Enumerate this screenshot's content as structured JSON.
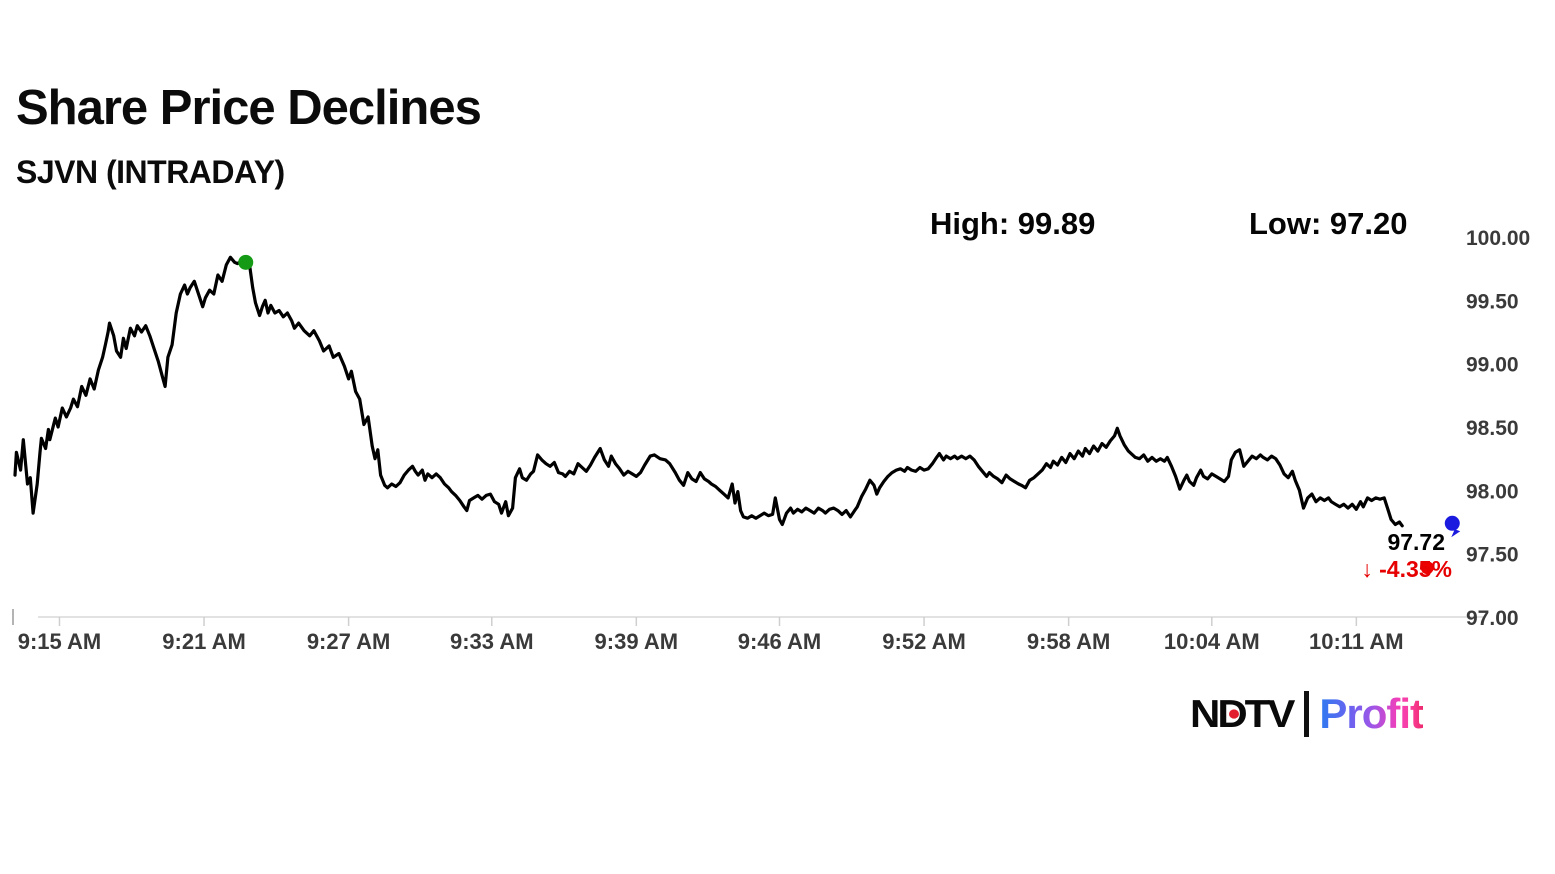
{
  "header": {
    "title": "Share Price Declines",
    "subtitle": "SJVN (INTRADAY)",
    "high_label": "High: 99.89",
    "low_label": "Low: 97.20"
  },
  "logo": {
    "ndtv": "NDTV",
    "profit": "Profit",
    "dot_color": "#e11d2e"
  },
  "chart_data": {
    "type": "line",
    "title": "Share Price Declines",
    "subtitle": "SJVN (INTRADAY)",
    "symbol": "SJVN",
    "high": 99.89,
    "low": 97.2,
    "last": 97.72,
    "change_pct": -4.35,
    "ylim": [
      97.0,
      100.0
    ],
    "grid": false,
    "y_ticks": [
      {
        "label": "100.00",
        "value": 100.0
      },
      {
        "label": "99.50",
        "value": 99.5
      },
      {
        "label": "99.00",
        "value": 99.0
      },
      {
        "label": "98.50",
        "value": 98.5
      },
      {
        "label": "98.00",
        "value": 98.0
      },
      {
        "label": "97.50",
        "value": 97.5
      },
      {
        "label": "97.00",
        "value": 97.0
      }
    ],
    "x_ticks": [
      {
        "label": "9:15 AM",
        "f": 0.032
      },
      {
        "label": "9:21 AM",
        "f": 0.136
      },
      {
        "label": "9:27 AM",
        "f": 0.24
      },
      {
        "label": "9:33 AM",
        "f": 0.343
      },
      {
        "label": "9:39 AM",
        "f": 0.447
      },
      {
        "label": "9:46 AM",
        "f": 0.55
      },
      {
        "label": "9:52 AM",
        "f": 0.654
      },
      {
        "label": "9:58 AM",
        "f": 0.758
      },
      {
        "label": "10:04 AM",
        "f": 0.861
      },
      {
        "label": "10:11 AM",
        "f": 0.965
      }
    ],
    "annotation": {
      "price_display": "97.72",
      "change_display": "↓ -4.35%"
    },
    "style": {
      "line_color": "#000000",
      "line_width": 3.2,
      "axis_color": "#d8d8d8",
      "tick_color": "#cfcfcf",
      "edge_tick_color": "#9a9a9a",
      "label_color": "#3a3a3a",
      "change_color": "#e60000"
    },
    "markers": [
      {
        "name": "high-marker",
        "color": "#149a14",
        "f": 0.166,
        "price": 99.8,
        "r": 7.5,
        "tail": false
      },
      {
        "name": "low-marker",
        "color": "#ee0000",
        "f": 1.016,
        "price": 97.39,
        "r": 6.5,
        "tail": false
      },
      {
        "name": "last-marker",
        "color": "#1b1be0",
        "f": 1.034,
        "price": 97.74,
        "r": 7.5,
        "tail": true
      }
    ],
    "points": [
      [
        0.0,
        98.12
      ],
      [
        0.001,
        98.3
      ],
      [
        0.004,
        98.16
      ],
      [
        0.006,
        98.4
      ],
      [
        0.009,
        98.05
      ],
      [
        0.011,
        98.1
      ],
      [
        0.013,
        97.82
      ],
      [
        0.016,
        98.05
      ],
      [
        0.018,
        98.3
      ],
      [
        0.019,
        98.41
      ],
      [
        0.022,
        98.33
      ],
      [
        0.024,
        98.48
      ],
      [
        0.025,
        98.4
      ],
      [
        0.029,
        98.57
      ],
      [
        0.031,
        98.5
      ],
      [
        0.034,
        98.65
      ],
      [
        0.037,
        98.58
      ],
      [
        0.04,
        98.65
      ],
      [
        0.042,
        98.72
      ],
      [
        0.045,
        98.66
      ],
      [
        0.048,
        98.82
      ],
      [
        0.051,
        98.75
      ],
      [
        0.054,
        98.88
      ],
      [
        0.057,
        98.8
      ],
      [
        0.06,
        98.95
      ],
      [
        0.063,
        99.05
      ],
      [
        0.065,
        99.15
      ],
      [
        0.067,
        99.25
      ],
      [
        0.068,
        99.32
      ],
      [
        0.071,
        99.22
      ],
      [
        0.073,
        99.1
      ],
      [
        0.076,
        99.05
      ],
      [
        0.078,
        99.2
      ],
      [
        0.08,
        99.12
      ],
      [
        0.083,
        99.28
      ],
      [
        0.086,
        99.22
      ],
      [
        0.088,
        99.3
      ],
      [
        0.091,
        99.25
      ],
      [
        0.094,
        99.3
      ],
      [
        0.097,
        99.22
      ],
      [
        0.1,
        99.12
      ],
      [
        0.103,
        99.02
      ],
      [
        0.106,
        98.9
      ],
      [
        0.108,
        98.82
      ],
      [
        0.11,
        99.05
      ],
      [
        0.113,
        99.15
      ],
      [
        0.116,
        99.4
      ],
      [
        0.119,
        99.55
      ],
      [
        0.122,
        99.62
      ],
      [
        0.124,
        99.55
      ],
      [
        0.126,
        99.6
      ],
      [
        0.129,
        99.65
      ],
      [
        0.132,
        99.55
      ],
      [
        0.135,
        99.45
      ],
      [
        0.137,
        99.52
      ],
      [
        0.14,
        99.58
      ],
      [
        0.143,
        99.55
      ],
      [
        0.146,
        99.7
      ],
      [
        0.149,
        99.65
      ],
      [
        0.152,
        99.78
      ],
      [
        0.155,
        99.84
      ],
      [
        0.158,
        99.8
      ],
      [
        0.16,
        99.79
      ],
      [
        0.163,
        99.81
      ],
      [
        0.166,
        99.8
      ],
      [
        0.169,
        99.76
      ],
      [
        0.171,
        99.6
      ],
      [
        0.173,
        99.48
      ],
      [
        0.176,
        99.38
      ],
      [
        0.178,
        99.45
      ],
      [
        0.18,
        99.5
      ],
      [
        0.182,
        99.4
      ],
      [
        0.184,
        99.46
      ],
      [
        0.187,
        99.4
      ],
      [
        0.19,
        99.42
      ],
      [
        0.193,
        99.37
      ],
      [
        0.196,
        99.4
      ],
      [
        0.199,
        99.34
      ],
      [
        0.201,
        99.28
      ],
      [
        0.204,
        99.32
      ],
      [
        0.208,
        99.26
      ],
      [
        0.212,
        99.22
      ],
      [
        0.215,
        99.26
      ],
      [
        0.219,
        99.18
      ],
      [
        0.222,
        99.1
      ],
      [
        0.226,
        99.14
      ],
      [
        0.229,
        99.05
      ],
      [
        0.233,
        99.08
      ],
      [
        0.237,
        98.98
      ],
      [
        0.24,
        98.88
      ],
      [
        0.242,
        98.94
      ],
      [
        0.245,
        98.78
      ],
      [
        0.248,
        98.72
      ],
      [
        0.251,
        98.52
      ],
      [
        0.254,
        98.58
      ],
      [
        0.257,
        98.35
      ],
      [
        0.259,
        98.25
      ],
      [
        0.261,
        98.32
      ],
      [
        0.263,
        98.12
      ],
      [
        0.266,
        98.04
      ],
      [
        0.268,
        98.02
      ],
      [
        0.271,
        98.05
      ],
      [
        0.274,
        98.03
      ],
      [
        0.277,
        98.06
      ],
      [
        0.28,
        98.12
      ],
      [
        0.283,
        98.16
      ],
      [
        0.286,
        98.19
      ],
      [
        0.288,
        98.15
      ],
      [
        0.29,
        98.12
      ],
      [
        0.293,
        98.16
      ],
      [
        0.295,
        98.08
      ],
      [
        0.297,
        98.13
      ],
      [
        0.3,
        98.1
      ],
      [
        0.303,
        98.13
      ],
      [
        0.306,
        98.1
      ],
      [
        0.309,
        98.05
      ],
      [
        0.312,
        98.02
      ],
      [
        0.314,
        97.99
      ],
      [
        0.317,
        97.96
      ],
      [
        0.32,
        97.92
      ],
      [
        0.323,
        97.87
      ],
      [
        0.325,
        97.84
      ],
      [
        0.327,
        97.92
      ],
      [
        0.33,
        97.94
      ],
      [
        0.333,
        97.96
      ],
      [
        0.336,
        97.93
      ],
      [
        0.339,
        97.96
      ],
      [
        0.342,
        97.97
      ],
      [
        0.345,
        97.91
      ],
      [
        0.348,
        97.89
      ],
      [
        0.35,
        97.82
      ],
      [
        0.353,
        97.91
      ],
      [
        0.355,
        97.8
      ],
      [
        0.358,
        97.86
      ],
      [
        0.36,
        98.1
      ],
      [
        0.363,
        98.17
      ],
      [
        0.365,
        98.1
      ],
      [
        0.368,
        98.08
      ],
      [
        0.371,
        98.13
      ],
      [
        0.373,
        98.15
      ],
      [
        0.376,
        98.28
      ],
      [
        0.379,
        98.24
      ],
      [
        0.382,
        98.21
      ],
      [
        0.385,
        98.19
      ],
      [
        0.388,
        98.22
      ],
      [
        0.391,
        98.14
      ],
      [
        0.394,
        98.13
      ],
      [
        0.396,
        98.11
      ],
      [
        0.399,
        98.15
      ],
      [
        0.402,
        98.13
      ],
      [
        0.405,
        98.21
      ],
      [
        0.408,
        98.18
      ],
      [
        0.411,
        98.15
      ],
      [
        0.414,
        98.2
      ],
      [
        0.417,
        98.26
      ],
      [
        0.421,
        98.33
      ],
      [
        0.424,
        98.24
      ],
      [
        0.427,
        98.19
      ],
      [
        0.429,
        98.27
      ],
      [
        0.432,
        98.21
      ],
      [
        0.435,
        98.17
      ],
      [
        0.438,
        98.12
      ],
      [
        0.441,
        98.15
      ],
      [
        0.444,
        98.13
      ],
      [
        0.447,
        98.11
      ],
      [
        0.45,
        98.14
      ],
      [
        0.453,
        98.2
      ],
      [
        0.457,
        98.27
      ],
      [
        0.46,
        98.28
      ],
      [
        0.464,
        98.25
      ],
      [
        0.468,
        98.24
      ],
      [
        0.471,
        98.21
      ],
      [
        0.475,
        98.14
      ],
      [
        0.478,
        98.08
      ],
      [
        0.481,
        98.04
      ],
      [
        0.484,
        98.14
      ],
      [
        0.487,
        98.09
      ],
      [
        0.49,
        98.07
      ],
      [
        0.493,
        98.14
      ],
      [
        0.496,
        98.09
      ],
      [
        0.499,
        98.07
      ],
      [
        0.501,
        98.05
      ],
      [
        0.504,
        98.03
      ],
      [
        0.507,
        98.0
      ],
      [
        0.51,
        97.97
      ],
      [
        0.513,
        97.94
      ],
      [
        0.516,
        98.05
      ],
      [
        0.518,
        97.9
      ],
      [
        0.52,
        97.99
      ],
      [
        0.522,
        97.84
      ],
      [
        0.524,
        97.79
      ],
      [
        0.527,
        97.78
      ],
      [
        0.53,
        97.8
      ],
      [
        0.533,
        97.78
      ],
      [
        0.536,
        97.8
      ],
      [
        0.539,
        97.82
      ],
      [
        0.542,
        97.8
      ],
      [
        0.545,
        97.81
      ],
      [
        0.547,
        97.94
      ],
      [
        0.55,
        97.77
      ],
      [
        0.552,
        97.73
      ],
      [
        0.555,
        97.82
      ],
      [
        0.558,
        97.86
      ],
      [
        0.56,
        97.82
      ],
      [
        0.563,
        97.85
      ],
      [
        0.566,
        97.83
      ],
      [
        0.569,
        97.86
      ],
      [
        0.572,
        97.84
      ],
      [
        0.575,
        97.82
      ],
      [
        0.578,
        97.86
      ],
      [
        0.581,
        97.84
      ],
      [
        0.583,
        97.82
      ],
      [
        0.586,
        97.85
      ],
      [
        0.589,
        97.86
      ],
      [
        0.592,
        97.84
      ],
      [
        0.595,
        97.81
      ],
      [
        0.598,
        97.84
      ],
      [
        0.601,
        97.79
      ],
      [
        0.604,
        97.84
      ],
      [
        0.606,
        97.87
      ],
      [
        0.609,
        97.95
      ],
      [
        0.612,
        98.01
      ],
      [
        0.615,
        98.08
      ],
      [
        0.618,
        98.04
      ],
      [
        0.62,
        97.97
      ],
      [
        0.622,
        98.02
      ],
      [
        0.625,
        98.07
      ],
      [
        0.628,
        98.11
      ],
      [
        0.631,
        98.14
      ],
      [
        0.634,
        98.16
      ],
      [
        0.637,
        98.17
      ],
      [
        0.64,
        98.15
      ],
      [
        0.642,
        98.18
      ],
      [
        0.645,
        98.16
      ],
      [
        0.648,
        98.15
      ],
      [
        0.651,
        98.18
      ],
      [
        0.654,
        98.16
      ],
      [
        0.657,
        98.17
      ],
      [
        0.66,
        98.21
      ],
      [
        0.663,
        98.26
      ],
      [
        0.665,
        98.29
      ],
      [
        0.668,
        98.24
      ],
      [
        0.67,
        98.27
      ],
      [
        0.673,
        98.25
      ],
      [
        0.676,
        98.27
      ],
      [
        0.678,
        98.25
      ],
      [
        0.681,
        98.27
      ],
      [
        0.684,
        98.25
      ],
      [
        0.687,
        98.27
      ],
      [
        0.69,
        98.24
      ],
      [
        0.693,
        98.19
      ],
      [
        0.696,
        98.15
      ],
      [
        0.699,
        98.11
      ],
      [
        0.701,
        98.14
      ],
      [
        0.704,
        98.11
      ],
      [
        0.707,
        98.09
      ],
      [
        0.71,
        98.06
      ],
      [
        0.713,
        98.12
      ],
      [
        0.716,
        98.09
      ],
      [
        0.719,
        98.07
      ],
      [
        0.722,
        98.05
      ],
      [
        0.724,
        98.04
      ],
      [
        0.727,
        98.02
      ],
      [
        0.73,
        98.08
      ],
      [
        0.733,
        98.1
      ],
      [
        0.736,
        98.13
      ],
      [
        0.739,
        98.16
      ],
      [
        0.742,
        98.21
      ],
      [
        0.745,
        98.18
      ],
      [
        0.747,
        98.23
      ],
      [
        0.75,
        98.2
      ],
      [
        0.753,
        98.26
      ],
      [
        0.756,
        98.22
      ],
      [
        0.759,
        98.29
      ],
      [
        0.762,
        98.25
      ],
      [
        0.765,
        98.31
      ],
      [
        0.768,
        98.27
      ],
      [
        0.77,
        98.33
      ],
      [
        0.773,
        98.29
      ],
      [
        0.776,
        98.35
      ],
      [
        0.779,
        98.31
      ],
      [
        0.782,
        98.37
      ],
      [
        0.785,
        98.34
      ],
      [
        0.788,
        98.39
      ],
      [
        0.791,
        98.43
      ],
      [
        0.793,
        98.49
      ],
      [
        0.795,
        98.43
      ],
      [
        0.798,
        98.36
      ],
      [
        0.801,
        98.31
      ],
      [
        0.804,
        98.28
      ],
      [
        0.806,
        98.26
      ],
      [
        0.809,
        98.25
      ],
      [
        0.812,
        98.28
      ],
      [
        0.815,
        98.23
      ],
      [
        0.818,
        98.26
      ],
      [
        0.821,
        98.23
      ],
      [
        0.824,
        98.25
      ],
      [
        0.827,
        98.23
      ],
      [
        0.829,
        98.26
      ],
      [
        0.832,
        98.19
      ],
      [
        0.835,
        98.11
      ],
      [
        0.838,
        98.01
      ],
      [
        0.841,
        98.08
      ],
      [
        0.843,
        98.12
      ],
      [
        0.845,
        98.07
      ],
      [
        0.848,
        98.04
      ],
      [
        0.85,
        98.1
      ],
      [
        0.853,
        98.16
      ],
      [
        0.855,
        98.11
      ],
      [
        0.858,
        98.09
      ],
      [
        0.861,
        98.13
      ],
      [
        0.864,
        98.11
      ],
      [
        0.867,
        98.09
      ],
      [
        0.87,
        98.07
      ],
      [
        0.873,
        98.11
      ],
      [
        0.875,
        98.24
      ],
      [
        0.878,
        98.3
      ],
      [
        0.881,
        98.32
      ],
      [
        0.884,
        98.19
      ],
      [
        0.887,
        98.23
      ],
      [
        0.89,
        98.27
      ],
      [
        0.893,
        98.25
      ],
      [
        0.896,
        98.28
      ],
      [
        0.898,
        98.26
      ],
      [
        0.901,
        98.24
      ],
      [
        0.904,
        98.27
      ],
      [
        0.907,
        98.25
      ],
      [
        0.91,
        98.2
      ],
      [
        0.913,
        98.13
      ],
      [
        0.916,
        98.1
      ],
      [
        0.919,
        98.15
      ],
      [
        0.921,
        98.08
      ],
      [
        0.924,
        98.0
      ],
      [
        0.927,
        97.86
      ],
      [
        0.93,
        97.94
      ],
      [
        0.933,
        97.97
      ],
      [
        0.936,
        97.91
      ],
      [
        0.939,
        97.94
      ],
      [
        0.942,
        97.92
      ],
      [
        0.945,
        97.94
      ],
      [
        0.947,
        97.91
      ],
      [
        0.95,
        97.89
      ],
      [
        0.953,
        97.87
      ],
      [
        0.956,
        97.89
      ],
      [
        0.959,
        97.86
      ],
      [
        0.962,
        97.89
      ],
      [
        0.965,
        97.85
      ],
      [
        0.968,
        97.91
      ],
      [
        0.97,
        97.87
      ],
      [
        0.973,
        97.94
      ],
      [
        0.976,
        97.92
      ],
      [
        0.979,
        97.94
      ],
      [
        0.982,
        97.93
      ],
      [
        0.985,
        97.94
      ],
      [
        0.988,
        97.84
      ],
      [
        0.99,
        97.77
      ],
      [
        0.993,
        97.73
      ],
      [
        0.996,
        97.75
      ],
      [
        0.998,
        97.72
      ]
    ]
  }
}
